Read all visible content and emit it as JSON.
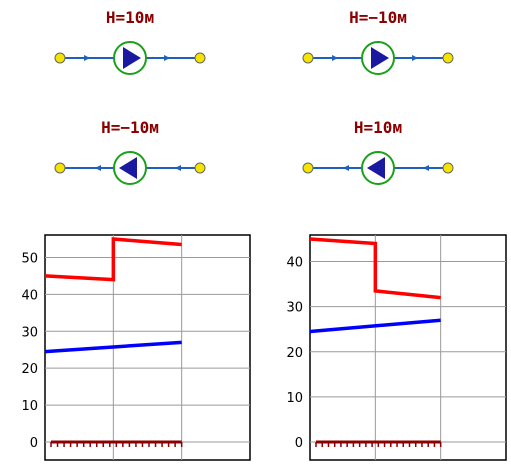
{
  "pumps": [
    {
      "label": "H=10м",
      "direction": "right"
    },
    {
      "label": "H=−10м",
      "direction": "right"
    },
    {
      "label": "H=−10м",
      "direction": "left"
    },
    {
      "label": "H=10м",
      "direction": "left"
    }
  ],
  "colors": {
    "label": "#8b0000",
    "pipe": "#1f5fbf",
    "node": "#f5e400",
    "pump_ring": "#1aa01a",
    "pump_triangle": "#1a1aa0",
    "series_1": "#ff0000",
    "series_2": "#0000ff",
    "baseline": "#8b0000"
  },
  "chart_data": [
    {
      "type": "line",
      "ylim": [
        0,
        55
      ],
      "xlim": [
        0,
        3
      ],
      "y_ticks": [
        "0",
        "10",
        "20",
        "30",
        "40",
        "50"
      ],
      "y_tick_values": [
        0,
        10,
        20,
        30,
        40,
        50
      ],
      "series": [
        {
          "values": [
            [
              0,
              45
            ],
            [
              1,
              44
            ],
            [
              1,
              55
            ],
            [
              2,
              53.5
            ]
          ]
        },
        {
          "values": [
            [
              0,
              24.5
            ],
            [
              2,
              27
            ]
          ]
        }
      ]
    },
    {
      "type": "line",
      "ylim": [
        0,
        45
      ],
      "xlim": [
        0,
        3
      ],
      "y_ticks": [
        "0",
        "10",
        "20",
        "30",
        "40"
      ],
      "y_tick_values": [
        0,
        10,
        20,
        30,
        40
      ],
      "series": [
        {
          "values": [
            [
              0,
              45
            ],
            [
              1,
              44
            ],
            [
              1,
              33.5
            ],
            [
              2,
              32
            ]
          ]
        },
        {
          "values": [
            [
              0,
              24.5
            ],
            [
              2,
              27
            ]
          ]
        }
      ]
    }
  ]
}
